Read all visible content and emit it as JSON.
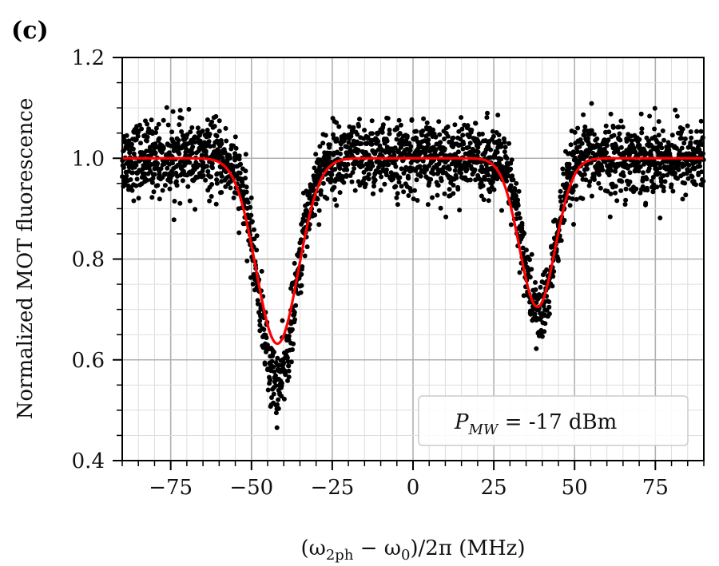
{
  "panel_label": "(c)",
  "chart_data": {
    "type": "scatter",
    "xlabel": "(ω2ph − ω0)/2π (MHz)",
    "xlabel_parts": {
      "open": "(ω",
      "sub1": "2ph",
      "mid": " − ω",
      "sub2": "0",
      "close": ")/2π (MHz)"
    },
    "ylabel": "Normalized MOT fluorescence",
    "xlim": [
      -90,
      90
    ],
    "ylim": [
      0.4,
      1.2
    ],
    "x_ticks": [
      -75,
      -50,
      -25,
      0,
      25,
      50,
      75
    ],
    "x_tick_labels": [
      "−75",
      "−50",
      "−25",
      "0",
      "25",
      "50",
      "75"
    ],
    "y_ticks": [
      0.4,
      0.6,
      0.8,
      1.0,
      1.2
    ],
    "y_tick_labels": [
      "0.4",
      "0.6",
      "0.8",
      "1.0",
      "1.2"
    ],
    "x_minor_step": 5,
    "y_minor_step": 0.05,
    "grid": true,
    "legend": {
      "placement": "bottom-right",
      "text": {
        "P": "P",
        "sub": "MW",
        "rest": " = -17 dBm"
      }
    },
    "series": [
      {
        "kind": "scatter",
        "color": "#000000",
        "description_points_sampled": true,
        "dips": [
          {
            "center": -42,
            "sigma": 5.6,
            "depth": 0.45
          },
          {
            "center": 39,
            "sigma": 4.8,
            "depth": 0.31
          }
        ],
        "baseline": 1.0,
        "noise": 0.035
      },
      {
        "kind": "fit-line",
        "color": "#ff0000",
        "baseline": 1.0,
        "dips": [
          {
            "center": -42,
            "sigma": 6.5,
            "depth": 0.368
          },
          {
            "center": 38.5,
            "sigma": 5.5,
            "depth": 0.295
          }
        ]
      }
    ]
  }
}
